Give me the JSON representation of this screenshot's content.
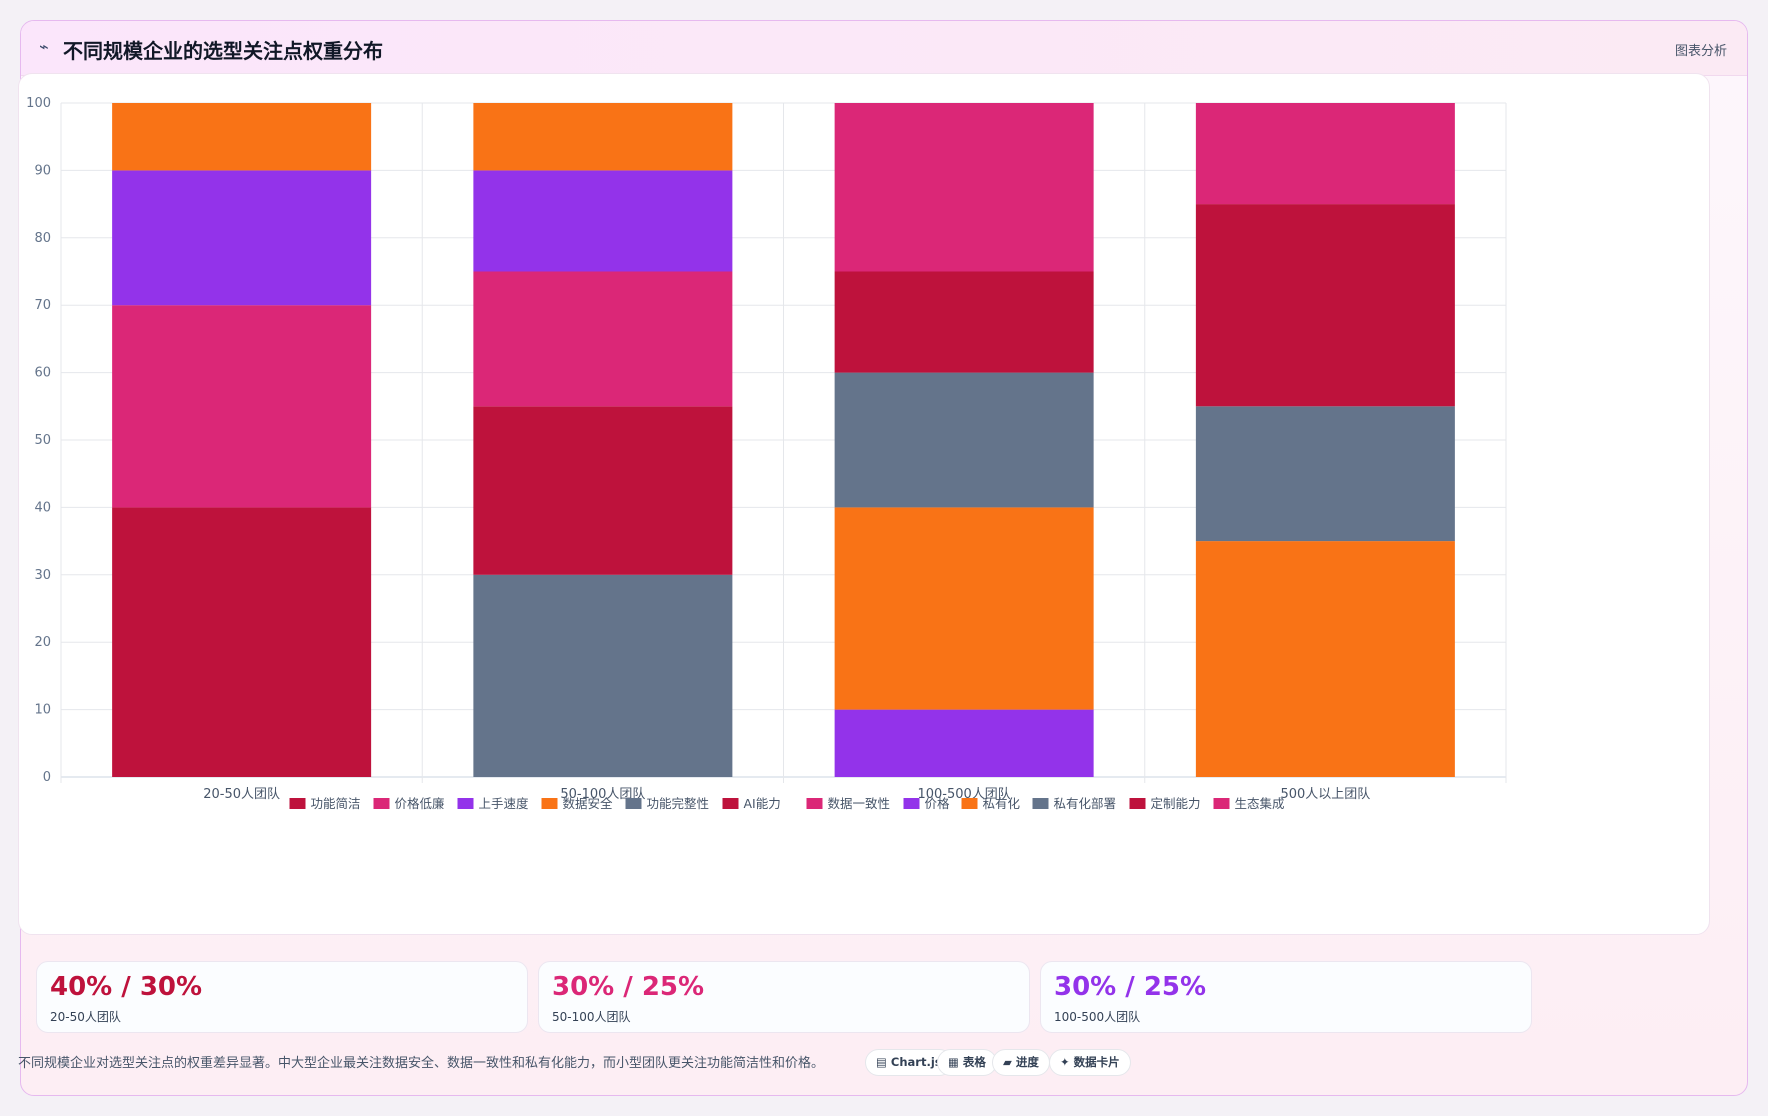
{
  "header": {
    "icon": "⌁",
    "title": "不同规模企业的选型关注点权重分布",
    "tag": "图表分析"
  },
  "chart_data": {
    "type": "bar",
    "stacked": true,
    "categories": [
      "20-50人团队",
      "50-100人团队",
      "100-500人团队",
      "500人以上团队"
    ],
    "ylim": [
      0,
      100
    ],
    "yticks": [
      0,
      10,
      20,
      30,
      40,
      50,
      60,
      70,
      80,
      90,
      100
    ],
    "grid": true,
    "legend_position": "bottom",
    "series": [
      {
        "name": "功能简洁",
        "color": "#be123c",
        "values": [
          40,
          0,
          0,
          0
        ]
      },
      {
        "name": "价格低廉",
        "color": "#db2777",
        "values": [
          30,
          0,
          0,
          0
        ]
      },
      {
        "name": "上手速度",
        "color": "#9333ea",
        "values": [
          20,
          0,
          0,
          0
        ]
      },
      {
        "name": "数据安全",
        "color": "#f97316",
        "values": [
          10,
          0,
          0,
          0
        ]
      },
      {
        "name": "功能完整性",
        "color": "#64748b",
        "values": [
          0,
          30,
          0,
          0
        ]
      },
      {
        "name": "AI能力",
        "color": "#be123c",
        "values": [
          0,
          25,
          0,
          0
        ]
      },
      {
        "name": "数据一致性",
        "color": "#db2777",
        "values": [
          0,
          20,
          0,
          0
        ]
      },
      {
        "name": "价格",
        "color": "#9333ea",
        "values": [
          0,
          15,
          10,
          0
        ]
      },
      {
        "name": "私有化",
        "color": "#f97316",
        "values": [
          0,
          10,
          30,
          35
        ]
      },
      {
        "name": "私有化部署",
        "color": "#64748b",
        "values": [
          0,
          0,
          20,
          20
        ]
      },
      {
        "name": "定制能力",
        "color": "#be123c",
        "values": [
          0,
          0,
          15,
          30
        ]
      },
      {
        "name": "生态集成",
        "color": "#db2777",
        "values": [
          0,
          0,
          25,
          15
        ]
      }
    ]
  },
  "kpis": [
    {
      "value": "40% / 30%",
      "label": "20-50人团队",
      "color": "#be123c"
    },
    {
      "value": "30% / 25%",
      "label": "50-100人团队",
      "color": "#db2777"
    },
    {
      "value": "30% / 25%",
      "label": "100-500人团队",
      "color": "#9333ea"
    }
  ],
  "summary": "不同规模企业对选型关注点的权重差异显著。中大型企业最关注数据安全、数据一致性和私有化能力，而小型团队更关注功能简洁性和价格。",
  "chips": [
    {
      "icon": "▤",
      "label": "Chart.js"
    },
    {
      "icon": "▦",
      "label": "表格"
    },
    {
      "icon": "▰",
      "label": "进度"
    },
    {
      "icon": "✦",
      "label": "数据卡片"
    }
  ]
}
